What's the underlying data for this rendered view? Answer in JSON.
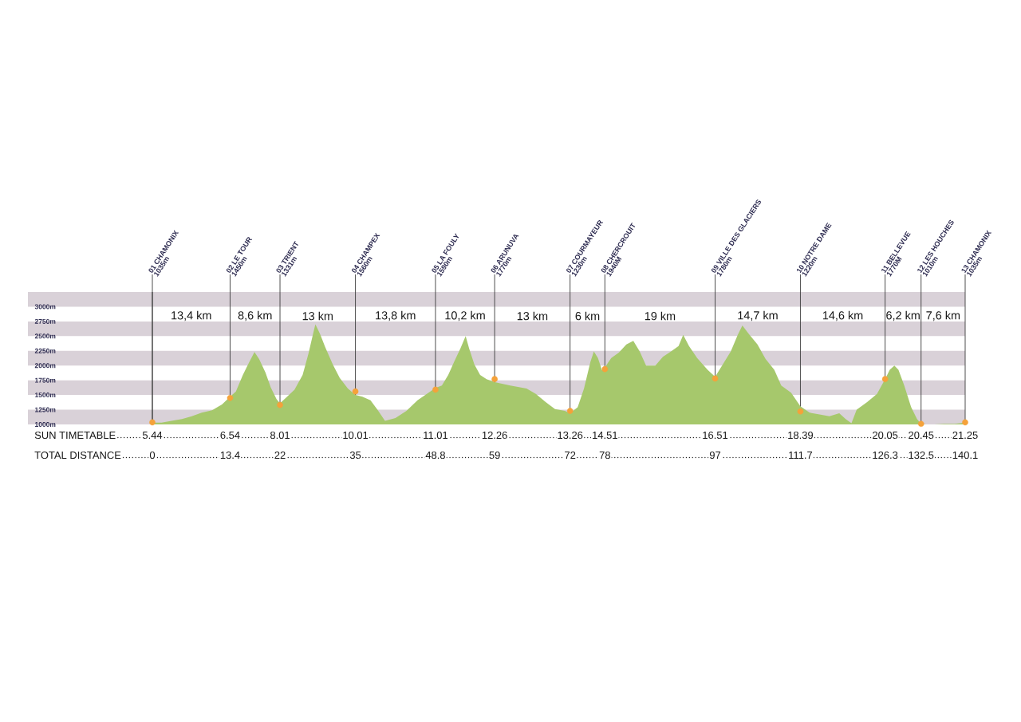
{
  "chart_data": {
    "type": "area",
    "xlabel": "TOTAL DISTANCE",
    "xlim": [
      0,
      140.1
    ],
    "xticks": [
      0,
      13.4,
      22,
      35,
      48.8,
      59,
      72,
      78,
      97,
      111.7,
      126.3,
      132.5,
      140.1
    ],
    "ylim": [
      1000,
      3250
    ],
    "yticks": [
      {
        "value": 1000,
        "label": "1000m"
      },
      {
        "value": 1250,
        "label": "1250m"
      },
      {
        "value": 1500,
        "label": "1500m"
      },
      {
        "value": 1750,
        "label": "1750m"
      },
      {
        "value": 2000,
        "label": "2000m"
      },
      {
        "value": 2250,
        "label": "2250m"
      },
      {
        "value": 2500,
        "label": "2500m"
      },
      {
        "value": 2750,
        "label": "2750m"
      },
      {
        "value": 3000,
        "label": "3000m"
      }
    ],
    "grid": "x",
    "bands": [
      {
        "axis": "y",
        "from": 1000,
        "to": 1250,
        "color": "#d9d1d8"
      },
      {
        "axis": "y",
        "from": 1500,
        "to": 1750,
        "color": "#d9d1d8"
      },
      {
        "axis": "y",
        "from": 2000,
        "to": 2250,
        "color": "#d9d1d8"
      },
      {
        "axis": "y",
        "from": 2500,
        "to": 2750,
        "color": "#d9d1d8"
      },
      {
        "axis": "y",
        "from": 3000,
        "to": 3250,
        "color": "#d9d1d8"
      }
    ],
    "series": [
      {
        "color": "#a6c86c",
        "x": [
          0,
          1.6,
          3.3,
          5.1,
          6.8,
          8.5,
          10.3,
          12.0,
          13.4,
          14.4,
          15.6,
          16.5,
          17.6,
          18.4,
          19.5,
          20.4,
          21.4,
          22,
          23.0,
          24.5,
          25.9,
          26.9,
          27.7,
          28.1,
          28.9,
          29.8,
          31.1,
          32.3,
          33.7,
          35,
          36.2,
          37.6,
          38.8,
          40.1,
          41.9,
          43.8,
          45.7,
          47.6,
          48.8,
          49.9,
          51.0,
          52.0,
          53.1,
          54.0,
          54.6,
          55.5,
          56.5,
          57.6,
          59,
          61.7,
          64.5,
          66.1,
          67.8,
          69.4,
          71.1,
          72,
          73.3,
          74.4,
          75.5,
          76.1,
          76.8,
          77.5,
          78,
          79.1,
          80.4,
          81.7,
          82.9,
          84.0,
          85.1,
          86.7,
          88.0,
          89.4,
          90.7,
          91.5,
          92.5,
          93.9,
          95.7,
          97,
          98.2,
          99.7,
          100.9,
          101.7,
          102.8,
          104.3,
          105.7,
          107.2,
          108.4,
          110.1,
          111.7,
          113.3,
          115.0,
          116.7,
          118.4,
          119.5,
          120.5,
          121.4,
          123.2,
          124.9,
          126.3,
          127.1,
          127.9,
          128.6,
          129.6,
          130.8,
          131.8,
          132.5,
          133.4,
          134.8,
          136.5,
          138.3,
          140.1
        ],
        "values": [
          1030,
          1030,
          1060,
          1090,
          1140,
          1200,
          1240,
          1340,
          1470,
          1560,
          1840,
          2020,
          2230,
          2110,
          1880,
          1630,
          1430,
          1360,
          1450,
          1590,
          1840,
          2200,
          2540,
          2700,
          2540,
          2310,
          2020,
          1790,
          1610,
          1500,
          1470,
          1410,
          1250,
          1060,
          1110,
          1230,
          1410,
          1540,
          1620,
          1660,
          1840,
          2060,
          2290,
          2500,
          2290,
          2020,
          1840,
          1770,
          1720,
          1660,
          1610,
          1520,
          1380,
          1260,
          1230,
          1190,
          1290,
          1610,
          2060,
          2240,
          2130,
          1920,
          1970,
          2130,
          2220,
          2360,
          2420,
          2240,
          2000,
          2000,
          2150,
          2240,
          2330,
          2520,
          2330,
          2130,
          1930,
          1810,
          2000,
          2240,
          2520,
          2680,
          2540,
          2360,
          2110,
          1930,
          1660,
          1540,
          1310,
          1200,
          1170,
          1140,
          1190,
          1090,
          1020,
          1250,
          1380,
          1520,
          1770,
          1930,
          2000,
          1930,
          1660,
          1290,
          1090,
          1010,
          1000,
          1000,
          1010,
          1010,
          1030
        ]
      },
      {
        "type": "scatter",
        "color": "#f5a23a",
        "marker": "circle",
        "x": [
          0,
          13.4,
          22,
          35,
          48.8,
          59,
          72,
          78,
          97,
          111.7,
          126.3,
          132.5,
          140.1
        ],
        "values": [
          1035,
          1450,
          1331,
          1560,
          1590,
          1770,
          1230,
          1940,
          1780,
          1220,
          1770,
          1010,
          1035
        ]
      }
    ],
    "annotations": [
      "01 CHAMONIX",
      "02 LE TOUR",
      "03 TRIENT",
      "04 CHAMPEX",
      "05 LA FOULY",
      "06 ARUNUVA",
      "07 COURMAYEUR",
      "08 CHERCROUIT",
      "09 VILLE DES GLACIERS",
      "10 NOTRE DAME",
      "11 BELLEVUE",
      "12 LES HOUCHES",
      "13 CHAMONIX",
      "1035m",
      "1450m",
      "1331m",
      "1560m",
      "1590m",
      "1770m",
      "1230m",
      "1940M",
      "1780m",
      "1220m",
      "1770M",
      "1010m",
      "1035m",
      "13,4 km",
      "8,6 km",
      "13 km",
      "13,8 km",
      "10,2 km",
      "13 km",
      "6 km",
      "19 km",
      "14,7 km",
      "14,6 km",
      "6,2 km",
      "7,6 km",
      "SUN TIMETABLE",
      "5.44",
      "6.54",
      "8.01",
      "10.01",
      "11.01",
      "12.26",
      "13.26",
      "14.51",
      "16.51",
      "18.39",
      "20.05",
      "20.45",
      "21.25"
    ]
  }
}
